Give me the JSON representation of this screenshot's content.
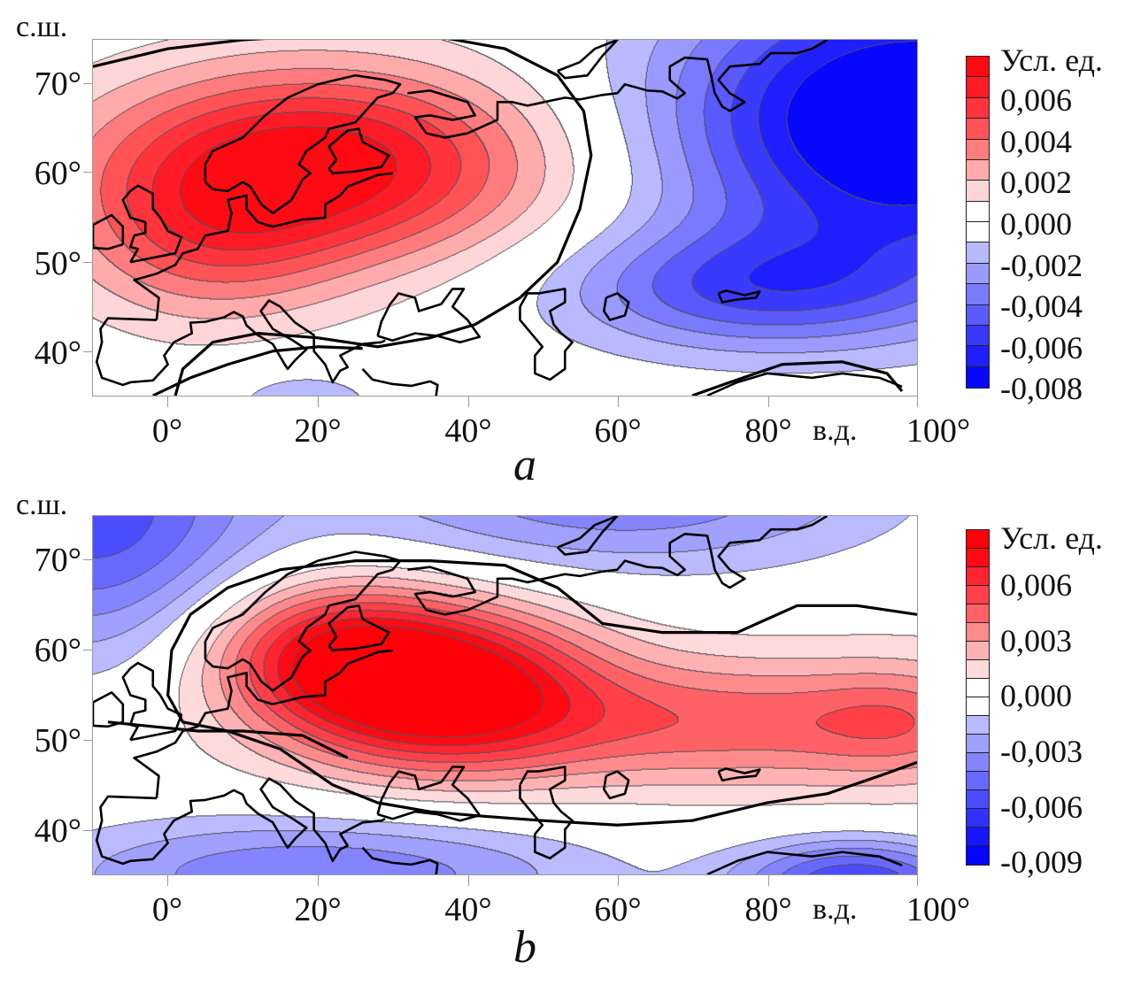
{
  "figure": {
    "panels": [
      {
        "id": "a",
        "letter": "a",
        "lat_unit": "с.ш.",
        "lon_unit": "в.д.",
        "y_ticks": [
          "70°",
          "60°",
          "50°",
          "40°"
        ],
        "x_ticks": [
          "0°",
          "20°",
          "40°",
          "60°",
          "80°",
          "100°"
        ],
        "colorbar": {
          "title": "Усл. ед.",
          "labels": [
            "0,006",
            "0,004",
            "0,002",
            "0,000",
            "-0,002",
            "-0,004",
            "-0,006",
            "-0,008"
          ],
          "colors": [
            "#ff0a12",
            "#ff1b25",
            "#ff343c",
            "#ff5356",
            "#ff7c7e",
            "#ffabac",
            "#ffd6d7",
            "#ffffff",
            "#ffffff",
            "#b9b9ff",
            "#9a9aff",
            "#7a7aff",
            "#5a5aff",
            "#3a3aff",
            "#1e1eff",
            "#0808ff"
          ]
        }
      },
      {
        "id": "b",
        "letter": "b",
        "lat_unit": "с.ш.",
        "lon_unit": "в.д.",
        "y_ticks": [
          "70°",
          "60°",
          "50°",
          "40°"
        ],
        "x_ticks": [
          "0°",
          "20°",
          "40°",
          "60°",
          "80°",
          "100°"
        ],
        "colorbar": {
          "title": "Усл. ед.",
          "labels": [
            "0,006",
            "0,003",
            "0,000",
            "-0,003",
            "-0,006",
            "-0,009"
          ],
          "colors": [
            "#ff0008",
            "#ff0a14",
            "#ff2430",
            "#ff4048",
            "#ff6266",
            "#ff8a8c",
            "#ffb2b3",
            "#ffdadb",
            "#ffffff",
            "#ffffff",
            "#babaff",
            "#a0a0ff",
            "#8484ff",
            "#6868ff",
            "#4c4cff",
            "#3030ff",
            "#1616ff",
            "#0404ff"
          ]
        }
      }
    ]
  },
  "chart_data": [
    {
      "type": "heatmap",
      "title": "a",
      "xlabel": "в.д.",
      "ylabel": "с.ш.",
      "xlim": [
        -10,
        100
      ],
      "ylim": [
        35,
        75
      ],
      "x_tick_values": [
        0,
        20,
        40,
        60,
        80,
        100
      ],
      "y_tick_values": [
        40,
        50,
        60,
        70
      ],
      "colorbar_label": "Усл. ед.",
      "colorbar_range": [
        -0.008,
        0.008
      ],
      "colorbar_ticks": [
        0.006,
        0.004,
        0.002,
        0.0,
        -0.002,
        -0.004,
        -0.006,
        -0.008
      ],
      "features": [
        {
          "kind": "maximum",
          "lon": 22,
          "lat": 62,
          "value": 0.007,
          "note": "positive anomaly centered over Scandinavia / Baltic"
        },
        {
          "kind": "minimum",
          "lon": 95,
          "lat": 64,
          "value": -0.008,
          "note": "negative anomaly over northern Siberia"
        },
        {
          "kind": "zero-line",
          "note": "thick black zero contour arcs from ~60°E north through ~40°N south, and along ~37°N in the southeast"
        }
      ]
    },
    {
      "type": "heatmap",
      "title": "b",
      "xlabel": "в.д.",
      "ylabel": "с.ш.",
      "xlim": [
        -10,
        100
      ],
      "ylim": [
        35,
        75
      ],
      "x_tick_values": [
        0,
        20,
        40,
        60,
        80,
        100
      ],
      "y_tick_values": [
        40,
        50,
        60,
        70
      ],
      "colorbar_label": "Усл. ед.",
      "colorbar_range": [
        -0.009,
        0.009
      ],
      "colorbar_ticks": [
        0.006,
        0.003,
        0.0,
        -0.003,
        -0.006,
        -0.009
      ],
      "features": [
        {
          "kind": "maximum",
          "lon": 36,
          "lat": 56,
          "value": 0.008,
          "note": "positive anomaly centered near Moscow region, extending east as a band along ~50-60°N"
        },
        {
          "kind": "minimum",
          "lon": -8,
          "lat": 73,
          "value": -0.009,
          "note": "negative anomaly in the northwest Atlantic/Arctic corner"
        },
        {
          "kind": "minimum",
          "lon": 90,
          "lat": 37,
          "value": -0.009,
          "note": "negative anomaly in the southeast (Central Asia)"
        },
        {
          "kind": "zero-line",
          "note": "thick black zero contour encloses the positive band from ~0°E to 100°E between ~42°N and ~70°N"
        }
      ]
    }
  ]
}
